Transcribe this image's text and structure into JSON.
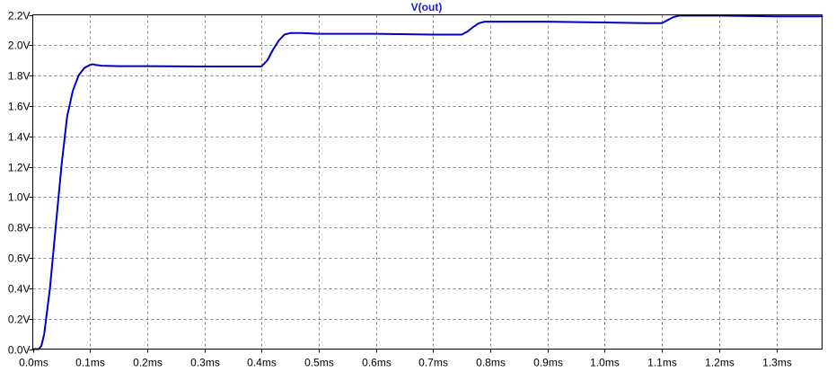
{
  "chart_data": {
    "type": "line",
    "title": "V(out)",
    "title_color": "#2020c0",
    "line_color": "#0000cc",
    "grid": true,
    "grid_style": "dashed",
    "xlabel": "",
    "ylabel": "",
    "xlim": [
      0,
      1.38
    ],
    "ylim": [
      0,
      2.2
    ],
    "x_ticks": [
      0,
      0.1,
      0.2,
      0.3,
      0.4,
      0.5,
      0.6,
      0.7,
      0.8,
      0.9,
      1.0,
      1.1,
      1.2,
      1.3
    ],
    "x_tick_labels": [
      "0.0ms",
      "0.1ms",
      "0.2ms",
      "0.3ms",
      "0.4ms",
      "0.5ms",
      "0.6ms",
      "0.7ms",
      "0.8ms",
      "0.9ms",
      "1.0ms",
      "1.1ms",
      "1.2ms",
      "1.3ms"
    ],
    "y_ticks": [
      0,
      0.2,
      0.4,
      0.6,
      0.8,
      1.0,
      1.2,
      1.4,
      1.6,
      1.8,
      2.0,
      2.2
    ],
    "y_tick_labels": [
      "0.0V",
      "0.2V",
      "0.4V",
      "0.6V",
      "0.8V",
      "1.0V",
      "1.2V",
      "1.4V",
      "1.6V",
      "1.8V",
      "2.0V",
      "2.2V"
    ],
    "series": [
      {
        "name": "V(out)",
        "x": [
          0,
          0.01,
          0.015,
          0.02,
          0.03,
          0.04,
          0.05,
          0.06,
          0.07,
          0.08,
          0.09,
          0.1,
          0.105,
          0.11,
          0.12,
          0.15,
          0.2,
          0.3,
          0.35,
          0.4,
          0.41,
          0.42,
          0.43,
          0.44,
          0.45,
          0.47,
          0.5,
          0.6,
          0.7,
          0.75,
          0.76,
          0.77,
          0.78,
          0.79,
          0.8,
          0.9,
          1.0,
          1.07,
          1.1,
          1.11,
          1.12,
          1.13,
          1.14,
          1.2,
          1.3,
          1.38
        ],
        "y": [
          0,
          0,
          0.02,
          0.1,
          0.4,
          0.8,
          1.2,
          1.53,
          1.7,
          1.8,
          1.85,
          1.87,
          1.875,
          1.87,
          1.865,
          1.862,
          1.862,
          1.86,
          1.86,
          1.86,
          1.9,
          1.97,
          2.03,
          2.07,
          2.08,
          2.08,
          2.075,
          2.075,
          2.07,
          2.07,
          2.09,
          2.12,
          2.145,
          2.155,
          2.155,
          2.155,
          2.15,
          2.145,
          2.145,
          2.165,
          2.185,
          2.195,
          2.195,
          2.195,
          2.19,
          2.19
        ]
      }
    ]
  }
}
